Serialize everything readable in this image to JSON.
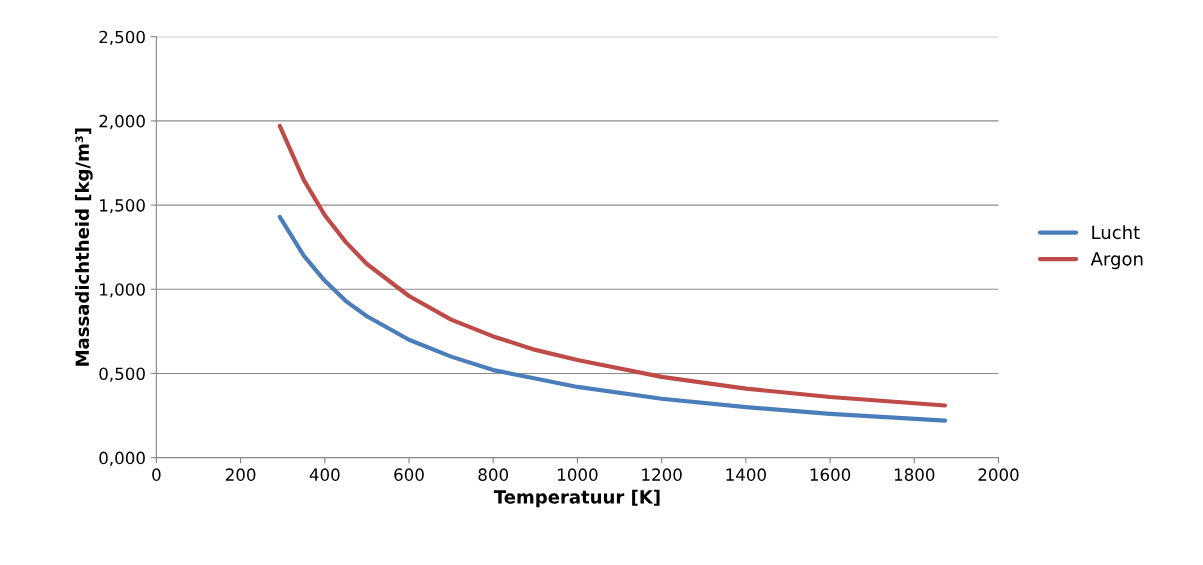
{
  "chart_data": {
    "type": "line",
    "xlabel": "Temperatuur [K]",
    "ylabel": "Massadichtheid [kg/m³]",
    "xlim": [
      0,
      2000
    ],
    "xticks": [
      0,
      200,
      400,
      600,
      800,
      1000,
      1200,
      1400,
      1600,
      1800,
      2000
    ],
    "ylim": [
      0,
      2.5
    ],
    "yticks": [
      {
        "value": 0,
        "label": "0,000"
      },
      {
        "value": 0.5,
        "label": "0,500"
      },
      {
        "value": 1,
        "label": "1,000"
      },
      {
        "value": 1.5,
        "label": "1,500"
      },
      {
        "value": 2,
        "label": "2,000"
      },
      {
        "value": 2.5,
        "label": "2,500"
      }
    ],
    "grid": "y",
    "legend": "right",
    "marker": "none",
    "line_style": "solid",
    "x": [
      293,
      350,
      400,
      450,
      500,
      600,
      700,
      800,
      900,
      1000,
      1200,
      1400,
      1600,
      1873
    ],
    "series": [
      {
        "name": "Lucht",
        "color": "#4a7ebb",
        "values": [
          1.43,
          1.2,
          1.05,
          0.93,
          0.84,
          0.7,
          0.6,
          0.52,
          0.47,
          0.42,
          0.35,
          0.3,
          0.26,
          0.22
        ]
      },
      {
        "name": "Argon",
        "color": "#be4b48",
        "values": [
          1.97,
          1.65,
          1.44,
          1.28,
          1.15,
          0.96,
          0.82,
          0.72,
          0.64,
          0.58,
          0.48,
          0.41,
          0.36,
          0.31
        ]
      }
    ]
  }
}
